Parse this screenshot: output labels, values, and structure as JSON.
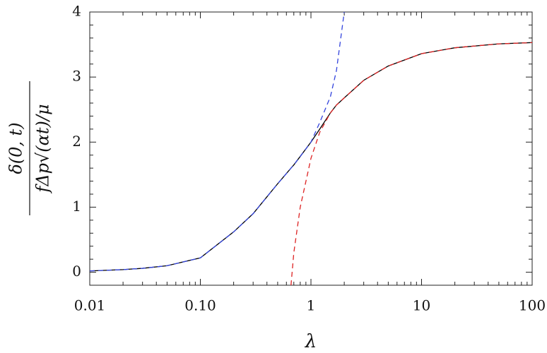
{
  "chart_data": {
    "type": "line",
    "x_label": "λ",
    "y_label": {
      "numerator": "δ(0, t)",
      "denominator": "fΔp√(αt)/μ"
    },
    "log_x": true,
    "x": [
      0.01,
      0.02,
      0.03,
      0.05,
      0.1,
      0.2,
      0.3,
      0.5,
      0.66,
      0.7,
      0.8,
      1,
      1.2,
      1.5,
      1.7,
      2,
      3,
      5,
      10,
      20,
      50,
      100
    ],
    "series": [
      {
        "color": "#000000",
        "dashed": false,
        "values": [
          0.02,
          0.04,
          0.06,
          0.1,
          0.22,
          0.62,
          0.9,
          1.36,
          1.6,
          1.65,
          1.78,
          2.0,
          2.2,
          2.45,
          2.57,
          2.68,
          2.95,
          3.17,
          3.36,
          3.45,
          3.51,
          3.53
        ]
      },
      {
        "color": "#3344dd",
        "dashed": true,
        "values": [
          0.02,
          0.04,
          0.06,
          0.1,
          0.22,
          0.62,
          0.9,
          1.36,
          1.6,
          1.65,
          1.78,
          2.0,
          2.3,
          2.7,
          3.1,
          4,
          null,
          null,
          null,
          null,
          null,
          null
        ]
      },
      {
        "color": "#dd2222",
        "dashed": true,
        "values": [
          null,
          null,
          null,
          null,
          null,
          null,
          null,
          null,
          -0.2,
          0.3,
          1.0,
          1.75,
          2.15,
          2.45,
          2.57,
          2.68,
          2.95,
          3.17,
          3.36,
          3.45,
          3.51,
          3.53
        ]
      }
    ],
    "xlim": [
      0.01,
      100
    ],
    "xticks": [
      0.01,
      {
        "value": 0.1,
        "label": "0.10"
      },
      1,
      10,
      100
    ],
    "ylim": [
      -0.2,
      4
    ],
    "yticks": [
      0,
      1,
      2,
      3,
      4
    ],
    "grid": false
  }
}
